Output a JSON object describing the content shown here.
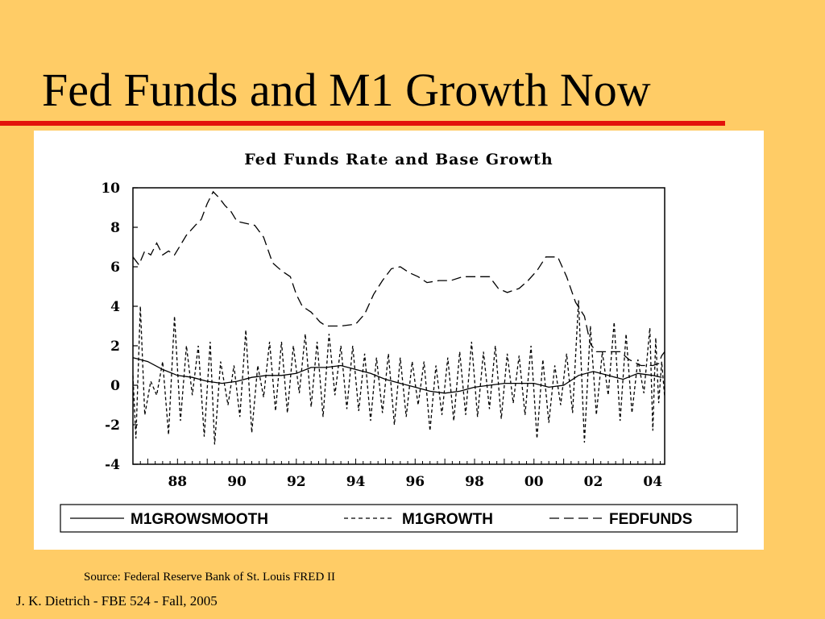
{
  "slide": {
    "title": "Fed Funds and M1 Growth Now",
    "source": "Source: Federal Reserve Bank of St. Louis FRED II",
    "footer": "J. K. Dietrich - FBE 524 - Fall, 2005"
  },
  "colors": {
    "background": "#FFCC66",
    "rule": "#E3120B",
    "panel": "#FFFFFF",
    "ink": "#000000"
  },
  "chart_data": {
    "type": "line",
    "title": "Fed Funds Rate and Base Growth",
    "xlabel": "",
    "ylabel": "",
    "ylim": [
      -4,
      10
    ],
    "yticks": [
      "10",
      "8",
      "6",
      "4",
      "2",
      "0",
      "-2",
      "-4"
    ],
    "xlim": [
      1986.5,
      2004.4
    ],
    "xticks": [
      {
        "label": "88",
        "year": 1988
      },
      {
        "label": "90",
        "year": 1990
      },
      {
        "label": "92",
        "year": 1992
      },
      {
        "label": "94",
        "year": 1994
      },
      {
        "label": "96",
        "year": 1996
      },
      {
        "label": "98",
        "year": 1998
      },
      {
        "label": "00",
        "year": 2000
      },
      {
        "label": "02",
        "year": 2002
      },
      {
        "label": "04",
        "year": 2004
      }
    ],
    "grid": false,
    "legend_position": "bottom",
    "series": [
      {
        "name": "M1GROWSMOOTH",
        "style": "solid",
        "points": [
          [
            1986.5,
            1.4
          ],
          [
            1987.0,
            1.2
          ],
          [
            1987.5,
            0.8
          ],
          [
            1988.0,
            0.5
          ],
          [
            1988.5,
            0.4
          ],
          [
            1989.0,
            0.2
          ],
          [
            1989.5,
            0.1
          ],
          [
            1990.0,
            0.2
          ],
          [
            1990.5,
            0.4
          ],
          [
            1991.0,
            0.5
          ],
          [
            1991.5,
            0.5
          ],
          [
            1992.0,
            0.6
          ],
          [
            1992.5,
            0.9
          ],
          [
            1993.0,
            0.9
          ],
          [
            1993.5,
            1.0
          ],
          [
            1994.0,
            0.8
          ],
          [
            1994.5,
            0.6
          ],
          [
            1995.0,
            0.3
          ],
          [
            1995.5,
            0.1
          ],
          [
            1996.0,
            -0.1
          ],
          [
            1996.5,
            -0.3
          ],
          [
            1997.0,
            -0.4
          ],
          [
            1997.5,
            -0.3
          ],
          [
            1998.0,
            -0.1
          ],
          [
            1998.5,
            0.0
          ],
          [
            1999.0,
            0.1
          ],
          [
            1999.5,
            0.1
          ],
          [
            2000.0,
            0.1
          ],
          [
            2000.5,
            -0.1
          ],
          [
            2001.0,
            0.0
          ],
          [
            2001.5,
            0.5
          ],
          [
            2002.0,
            0.7
          ],
          [
            2002.5,
            0.5
          ],
          [
            2003.0,
            0.3
          ],
          [
            2003.5,
            0.6
          ],
          [
            2004.0,
            0.5
          ],
          [
            2004.3,
            0.4
          ]
        ]
      },
      {
        "name": "M1GROWTH",
        "style": "dotted",
        "points": [
          [
            1986.5,
            0.5
          ],
          [
            1986.6,
            -2.7
          ],
          [
            1986.75,
            4.0
          ],
          [
            1986.9,
            -1.5
          ],
          [
            1987.1,
            0.2
          ],
          [
            1987.3,
            -0.5
          ],
          [
            1987.5,
            1.2
          ],
          [
            1987.7,
            -2.5
          ],
          [
            1987.9,
            3.5
          ],
          [
            1988.1,
            -1.8
          ],
          [
            1988.3,
            2.0
          ],
          [
            1988.5,
            -0.5
          ],
          [
            1988.7,
            2.0
          ],
          [
            1988.9,
            -2.6
          ],
          [
            1989.1,
            2.2
          ],
          [
            1989.25,
            -3.0
          ],
          [
            1989.45,
            1.2
          ],
          [
            1989.7,
            -1.0
          ],
          [
            1989.9,
            1.0
          ],
          [
            1990.1,
            -1.6
          ],
          [
            1990.3,
            2.8
          ],
          [
            1990.5,
            -2.4
          ],
          [
            1990.7,
            1.0
          ],
          [
            1990.9,
            -0.6
          ],
          [
            1991.1,
            2.2
          ],
          [
            1991.3,
            -1.3
          ],
          [
            1991.5,
            2.2
          ],
          [
            1991.7,
            -1.4
          ],
          [
            1991.9,
            2.0
          ],
          [
            1992.1,
            -0.4
          ],
          [
            1992.3,
            2.6
          ],
          [
            1992.5,
            -1.1
          ],
          [
            1992.7,
            2.2
          ],
          [
            1992.9,
            -1.6
          ],
          [
            1993.1,
            2.6
          ],
          [
            1993.3,
            -0.5
          ],
          [
            1993.5,
            2.0
          ],
          [
            1993.7,
            -1.2
          ],
          [
            1993.9,
            2.0
          ],
          [
            1994.1,
            -1.3
          ],
          [
            1994.3,
            1.6
          ],
          [
            1994.5,
            -1.8
          ],
          [
            1994.7,
            1.4
          ],
          [
            1994.9,
            -1.4
          ],
          [
            1995.1,
            1.6
          ],
          [
            1995.3,
            -2.0
          ],
          [
            1995.5,
            1.4
          ],
          [
            1995.7,
            -1.6
          ],
          [
            1995.9,
            1.2
          ],
          [
            1996.1,
            -1.0
          ],
          [
            1996.3,
            1.2
          ],
          [
            1996.5,
            -2.3
          ],
          [
            1996.7,
            1.0
          ],
          [
            1996.9,
            -1.5
          ],
          [
            1997.1,
            1.4
          ],
          [
            1997.3,
            -1.8
          ],
          [
            1997.5,
            1.7
          ],
          [
            1997.7,
            -1.5
          ],
          [
            1997.9,
            2.2
          ],
          [
            1998.1,
            -1.6
          ],
          [
            1998.3,
            1.7
          ],
          [
            1998.5,
            -1.2
          ],
          [
            1998.7,
            2.0
          ],
          [
            1998.9,
            -1.7
          ],
          [
            1999.1,
            1.6
          ],
          [
            1999.3,
            -0.9
          ],
          [
            1999.5,
            1.5
          ],
          [
            1999.7,
            -1.5
          ],
          [
            1999.9,
            2.0
          ],
          [
            2000.1,
            -2.7
          ],
          [
            2000.3,
            1.3
          ],
          [
            2000.5,
            -1.9
          ],
          [
            2000.7,
            1.0
          ],
          [
            2000.9,
            -1.0
          ],
          [
            2001.1,
            1.6
          ],
          [
            2001.3,
            -1.4
          ],
          [
            2001.5,
            4.3
          ],
          [
            2001.7,
            -2.9
          ],
          [
            2001.9,
            3.0
          ],
          [
            2002.1,
            -1.5
          ],
          [
            2002.3,
            1.7
          ],
          [
            2002.5,
            -0.5
          ],
          [
            2002.7,
            3.2
          ],
          [
            2002.9,
            -1.8
          ],
          [
            2003.1,
            2.6
          ],
          [
            2003.3,
            -1.4
          ],
          [
            2003.5,
            1.3
          ],
          [
            2003.7,
            -0.4
          ],
          [
            2003.9,
            2.9
          ],
          [
            2004.0,
            -2.3
          ],
          [
            2004.1,
            2.4
          ],
          [
            2004.2,
            -0.9
          ],
          [
            2004.3,
            1.2
          ],
          [
            2004.4,
            -0.6
          ]
        ]
      },
      {
        "name": "FEDFUNDS",
        "style": "dashed",
        "points": [
          [
            1986.5,
            6.5
          ],
          [
            1986.7,
            6.1
          ],
          [
            1986.9,
            6.8
          ],
          [
            1987.1,
            6.6
          ],
          [
            1987.3,
            7.2
          ],
          [
            1987.5,
            6.6
          ],
          [
            1987.7,
            6.8
          ],
          [
            1987.9,
            6.6
          ],
          [
            1988.1,
            7.1
          ],
          [
            1988.3,
            7.6
          ],
          [
            1988.6,
            8.1
          ],
          [
            1988.8,
            8.4
          ],
          [
            1989.0,
            9.2
          ],
          [
            1989.2,
            9.8
          ],
          [
            1989.4,
            9.5
          ],
          [
            1989.6,
            9.1
          ],
          [
            1989.8,
            8.8
          ],
          [
            1990.0,
            8.3
          ],
          [
            1990.3,
            8.2
          ],
          [
            1990.6,
            8.1
          ],
          [
            1990.9,
            7.5
          ],
          [
            1991.2,
            6.2
          ],
          [
            1991.5,
            5.8
          ],
          [
            1991.8,
            5.5
          ],
          [
            1992.0,
            4.6
          ],
          [
            1992.2,
            4.0
          ],
          [
            1992.5,
            3.7
          ],
          [
            1992.8,
            3.2
          ],
          [
            1993.0,
            3.0
          ],
          [
            1993.5,
            3.0
          ],
          [
            1994.0,
            3.1
          ],
          [
            1994.3,
            3.6
          ],
          [
            1994.6,
            4.6
          ],
          [
            1994.9,
            5.3
          ],
          [
            1995.2,
            5.9
          ],
          [
            1995.5,
            6.0
          ],
          [
            1995.8,
            5.7
          ],
          [
            1996.1,
            5.5
          ],
          [
            1996.4,
            5.2
          ],
          [
            1996.8,
            5.3
          ],
          [
            1997.2,
            5.3
          ],
          [
            1997.6,
            5.5
          ],
          [
            1998.0,
            5.5
          ],
          [
            1998.5,
            5.5
          ],
          [
            1998.8,
            4.9
          ],
          [
            1999.1,
            4.7
          ],
          [
            1999.5,
            4.9
          ],
          [
            1999.8,
            5.3
          ],
          [
            2000.1,
            5.8
          ],
          [
            2000.4,
            6.5
          ],
          [
            2000.8,
            6.5
          ],
          [
            2001.1,
            5.5
          ],
          [
            2001.4,
            4.2
          ],
          [
            2001.7,
            3.5
          ],
          [
            2001.9,
            2.1
          ],
          [
            2002.1,
            1.7
          ],
          [
            2002.5,
            1.7
          ],
          [
            2002.9,
            1.7
          ],
          [
            2003.2,
            1.3
          ],
          [
            2003.6,
            1.0
          ],
          [
            2004.0,
            1.0
          ],
          [
            2004.2,
            1.1
          ],
          [
            2004.3,
            1.5
          ],
          [
            2004.4,
            1.7
          ]
        ]
      }
    ]
  }
}
